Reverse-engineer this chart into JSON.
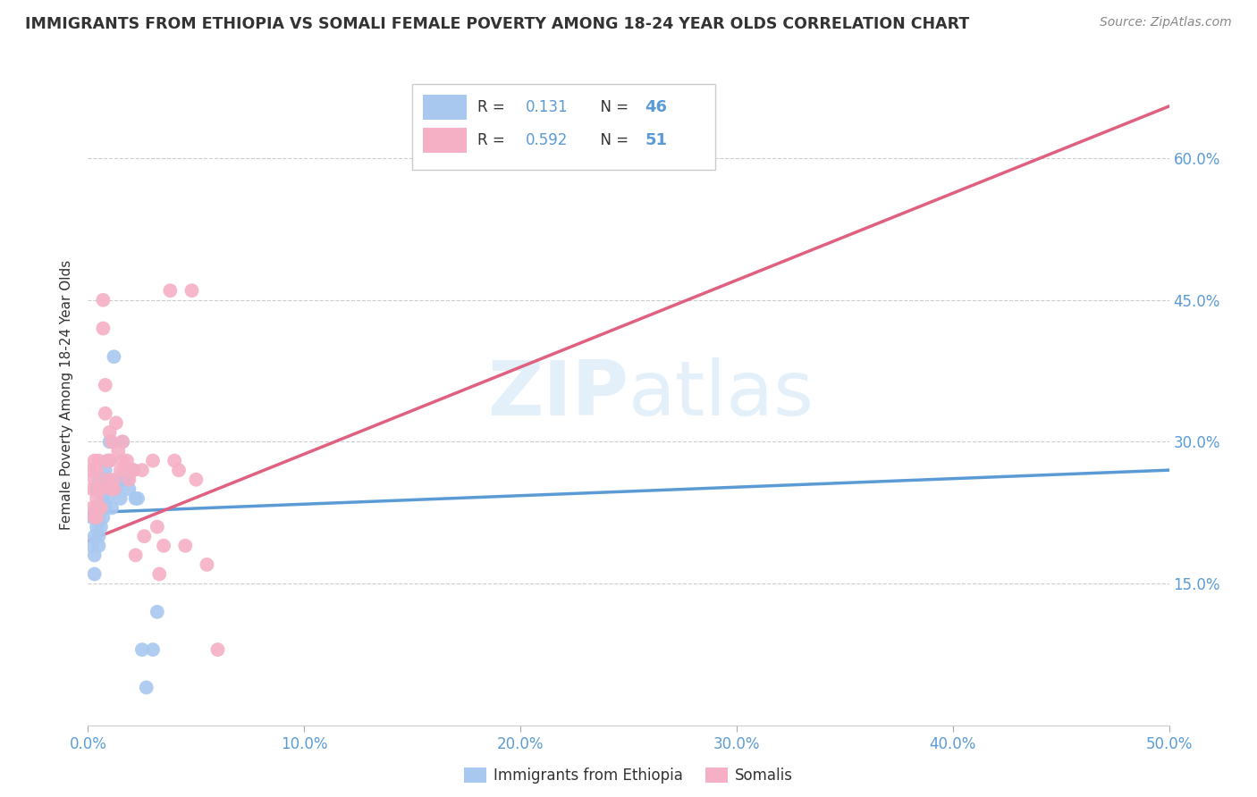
{
  "title": "IMMIGRANTS FROM ETHIOPIA VS SOMALI FEMALE POVERTY AMONG 18-24 YEAR OLDS CORRELATION CHART",
  "source": "Source: ZipAtlas.com",
  "ylabel": "Female Poverty Among 18-24 Year Olds",
  "xlabel_ethiopia": "Immigrants from Ethiopia",
  "xlabel_somali": "Somalis",
  "xlim": [
    0.0,
    0.5
  ],
  "ylim": [
    0.0,
    0.7
  ],
  "yticks": [
    0.15,
    0.3,
    0.45,
    0.6
  ],
  "ytick_labels": [
    "15.0%",
    "30.0%",
    "45.0%",
    "60.0%"
  ],
  "xticks": [
    0.0,
    0.1,
    0.2,
    0.3,
    0.4,
    0.5
  ],
  "xtick_labels": [
    "0.0%",
    "10.0%",
    "20.0%",
    "30.0%",
    "40.0%",
    "50.0%"
  ],
  "legend_R_ethiopia": "0.131",
  "legend_N_ethiopia": "46",
  "legend_R_somali": "0.592",
  "legend_N_somali": "51",
  "color_ethiopia": "#a8c8f0",
  "color_somali": "#f5b0c5",
  "trendline_ethiopia_color": "#5b9bd5",
  "trendline_somali_color": "#e06080",
  "watermark": "ZIPatlas",
  "background_color": "#ffffff",
  "grid_color": "#cccccc",
  "ethiopia_x": [
    0.002,
    0.002,
    0.003,
    0.003,
    0.003,
    0.004,
    0.004,
    0.004,
    0.004,
    0.005,
    0.005,
    0.005,
    0.005,
    0.006,
    0.006,
    0.006,
    0.007,
    0.007,
    0.007,
    0.008,
    0.008,
    0.008,
    0.009,
    0.009,
    0.01,
    0.01,
    0.01,
    0.011,
    0.012,
    0.012,
    0.013,
    0.014,
    0.015,
    0.015,
    0.016,
    0.017,
    0.018,
    0.019,
    0.02,
    0.021,
    0.022,
    0.023,
    0.025,
    0.027,
    0.03,
    0.032
  ],
  "ethiopia_y": [
    0.22,
    0.19,
    0.16,
    0.18,
    0.2,
    0.22,
    0.25,
    0.21,
    0.23,
    0.2,
    0.22,
    0.19,
    0.26,
    0.23,
    0.25,
    0.21,
    0.24,
    0.26,
    0.22,
    0.25,
    0.23,
    0.27,
    0.24,
    0.26,
    0.28,
    0.25,
    0.3,
    0.23,
    0.39,
    0.25,
    0.25,
    0.26,
    0.24,
    0.26,
    0.3,
    0.26,
    0.26,
    0.25,
    0.27,
    0.27,
    0.24,
    0.24,
    0.08,
    0.04,
    0.08,
    0.12
  ],
  "somali_x": [
    0.001,
    0.002,
    0.002,
    0.003,
    0.003,
    0.003,
    0.004,
    0.004,
    0.004,
    0.005,
    0.005,
    0.005,
    0.006,
    0.006,
    0.007,
    0.007,
    0.008,
    0.008,
    0.009,
    0.009,
    0.01,
    0.01,
    0.011,
    0.011,
    0.012,
    0.012,
    0.013,
    0.014,
    0.015,
    0.016,
    0.016,
    0.017,
    0.018,
    0.019,
    0.02,
    0.021,
    0.022,
    0.025,
    0.026,
    0.03,
    0.032,
    0.033,
    0.035,
    0.038,
    0.04,
    0.042,
    0.045,
    0.048,
    0.05,
    0.055,
    0.06
  ],
  "somali_y": [
    0.27,
    0.25,
    0.23,
    0.22,
    0.26,
    0.28,
    0.24,
    0.27,
    0.22,
    0.23,
    0.25,
    0.28,
    0.25,
    0.23,
    0.42,
    0.45,
    0.33,
    0.36,
    0.26,
    0.28,
    0.28,
    0.31,
    0.25,
    0.3,
    0.25,
    0.26,
    0.32,
    0.29,
    0.27,
    0.28,
    0.3,
    0.27,
    0.28,
    0.26,
    0.27,
    0.27,
    0.18,
    0.27,
    0.2,
    0.28,
    0.21,
    0.16,
    0.19,
    0.46,
    0.28,
    0.27,
    0.19,
    0.46,
    0.26,
    0.17,
    0.08
  ],
  "trendline_eth_x0": 0.0,
  "trendline_eth_y0": 0.225,
  "trendline_eth_x1": 0.5,
  "trendline_eth_y1": 0.27,
  "trendline_som_x0": 0.0,
  "trendline_som_y0": 0.195,
  "trendline_som_x1": 0.5,
  "trendline_som_y1": 0.655
}
